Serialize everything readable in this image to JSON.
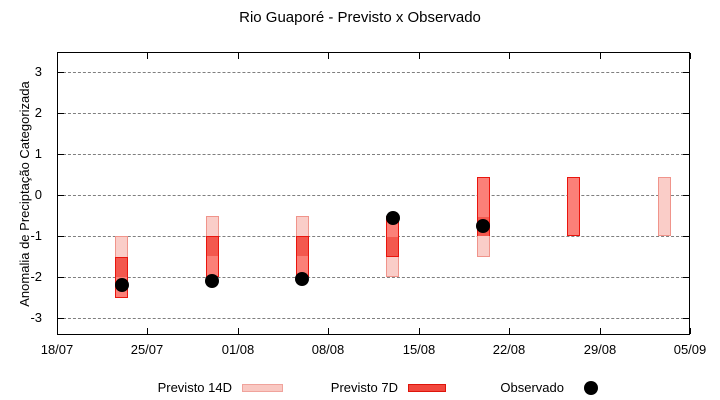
{
  "chart_data": {
    "type": "candlestick",
    "title": "Rio Guaporé - Previsto x Observado",
    "ylabel": "Anomalia de Preciptação Categorizada",
    "x_axis": {
      "tick_labels": [
        "18/07",
        "25/07",
        "01/08",
        "08/08",
        "15/08",
        "22/08",
        "29/08",
        "05/09"
      ],
      "tick_days": [
        0,
        7,
        14,
        21,
        28,
        35,
        42,
        49
      ],
      "range_days": [
        0,
        49
      ]
    },
    "y_axis": {
      "ticks": [
        3,
        2,
        1,
        0,
        -1,
        -2,
        -3
      ],
      "ylim": [
        -3.45,
        3.5
      ],
      "grid": "horizontal-dashed"
    },
    "legend": {
      "position": "bottom",
      "items": [
        {
          "label": "Previsto 14D",
          "type": "range-bar",
          "fill": "#F9C8C2",
          "border": "#F0A39C"
        },
        {
          "label": "Previsto 7D",
          "type": "range-bar",
          "fill": "#F2483E",
          "border": "#DE150B"
        },
        {
          "label": "Observado",
          "type": "dot",
          "color": "#000000"
        }
      ]
    },
    "colors": {
      "p14_fill": "#FACDC8",
      "p14_border": "#F0948B",
      "p7_fill": "#FB8078",
      "p7_border": "#E9150D",
      "overlap_fill": "#F3584E",
      "observed": "#000000",
      "grid": "#7F7F7F",
      "axis": "#000000",
      "background": "#FFFFFF"
    },
    "bars": [
      {
        "date": "23/07",
        "day": 5,
        "previsto_14d": [
          -1.0,
          -2.0
        ],
        "previsto_7d": [
          -1.5,
          -2.5
        ],
        "observado": -2.2
      },
      {
        "date": "30/07",
        "day": 12,
        "previsto_14d": [
          -0.5,
          -1.5
        ],
        "previsto_7d": [
          -1.0,
          -2.0
        ],
        "observado": -2.1
      },
      {
        "date": "06/08",
        "day": 19,
        "previsto_14d": [
          -0.5,
          -1.5
        ],
        "previsto_7d": [
          -1.0,
          -2.0
        ],
        "observado": -2.05
      },
      {
        "date": "13/08",
        "day": 26,
        "previsto_14d": [
          -1.0,
          -2.0
        ],
        "previsto_7d": [
          -0.5,
          -1.5
        ],
        "observado": -0.55
      },
      {
        "date": "20/08",
        "day": 33,
        "previsto_14d": [
          -0.5,
          -1.5
        ],
        "previsto_7d": [
          0.45,
          -1.0
        ],
        "observado": -0.75
      },
      {
        "date": "27/08",
        "day": 40,
        "previsto_14d": null,
        "previsto_7d": [
          0.45,
          -1.0
        ],
        "observado": null
      },
      {
        "date": "03/09",
        "day": 47,
        "previsto_14d": [
          0.45,
          -1.0
        ],
        "previsto_7d": null,
        "observado": null
      }
    ]
  }
}
